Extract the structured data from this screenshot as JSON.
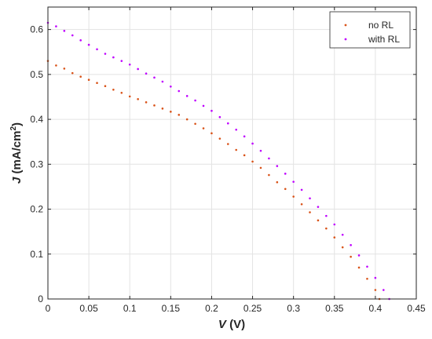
{
  "chart_data": {
    "type": "scatter",
    "title": "",
    "xlabel": {
      "var": "V",
      "unit": " (V)"
    },
    "ylabel": {
      "var": "J",
      "unit": " (mA/cm",
      "sup": "2",
      "close": ")"
    },
    "xlim": [
      0,
      0.45
    ],
    "ylim": [
      0,
      0.65
    ],
    "xticks": [
      0,
      0.05,
      0.1,
      0.15,
      0.2,
      0.25,
      0.3,
      0.35,
      0.4,
      0.45
    ],
    "xtick_labels": [
      "0",
      "0.05",
      "0.1",
      "0.15",
      "0.2",
      "0.25",
      "0.3",
      "0.35",
      "0.4",
      "0.45"
    ],
    "yticks": [
      0,
      0.1,
      0.2,
      0.3,
      0.4,
      0.5,
      0.6
    ],
    "ytick_labels": [
      "0",
      "0.1",
      "0.2",
      "0.3",
      "0.4",
      "0.5",
      "0.6"
    ],
    "grid": true,
    "legend": {
      "position": "top-right"
    },
    "series": [
      {
        "name": "no RL",
        "color": "#D95319",
        "points": [
          [
            0,
            0.53
          ],
          [
            0.01,
            0.52
          ],
          [
            0.02,
            0.513
          ],
          [
            0.03,
            0.503
          ],
          [
            0.04,
            0.495
          ],
          [
            0.05,
            0.488
          ],
          [
            0.06,
            0.481
          ],
          [
            0.07,
            0.474
          ],
          [
            0.08,
            0.466
          ],
          [
            0.09,
            0.459
          ],
          [
            0.1,
            0.451
          ],
          [
            0.11,
            0.445
          ],
          [
            0.12,
            0.438
          ],
          [
            0.13,
            0.431
          ],
          [
            0.14,
            0.424
          ],
          [
            0.15,
            0.417
          ],
          [
            0.16,
            0.41
          ],
          [
            0.17,
            0.4
          ],
          [
            0.18,
            0.39
          ],
          [
            0.19,
            0.38
          ],
          [
            0.2,
            0.369
          ],
          [
            0.21,
            0.357
          ],
          [
            0.22,
            0.345
          ],
          [
            0.23,
            0.332
          ],
          [
            0.24,
            0.32
          ],
          [
            0.25,
            0.306
          ],
          [
            0.26,
            0.292
          ],
          [
            0.27,
            0.276
          ],
          [
            0.28,
            0.26
          ],
          [
            0.29,
            0.245
          ],
          [
            0.3,
            0.228
          ],
          [
            0.31,
            0.211
          ],
          [
            0.32,
            0.193
          ],
          [
            0.33,
            0.175
          ],
          [
            0.34,
            0.157
          ],
          [
            0.35,
            0.137
          ],
          [
            0.36,
            0.115
          ],
          [
            0.37,
            0.094
          ],
          [
            0.38,
            0.07
          ],
          [
            0.39,
            0.045
          ],
          [
            0.4,
            0.02
          ],
          [
            0.405,
            0.0
          ]
        ]
      },
      {
        "name": "with RL",
        "color": "#BF00FF",
        "points": [
          [
            0,
            0.615
          ],
          [
            0.01,
            0.607
          ],
          [
            0.02,
            0.597
          ],
          [
            0.03,
            0.587
          ],
          [
            0.04,
            0.576
          ],
          [
            0.05,
            0.566
          ],
          [
            0.06,
            0.556
          ],
          [
            0.07,
            0.546
          ],
          [
            0.08,
            0.538
          ],
          [
            0.09,
            0.53
          ],
          [
            0.1,
            0.522
          ],
          [
            0.11,
            0.512
          ],
          [
            0.12,
            0.502
          ],
          [
            0.13,
            0.493
          ],
          [
            0.14,
            0.484
          ],
          [
            0.15,
            0.473
          ],
          [
            0.16,
            0.463
          ],
          [
            0.17,
            0.452
          ],
          [
            0.18,
            0.442
          ],
          [
            0.19,
            0.43
          ],
          [
            0.2,
            0.419
          ],
          [
            0.21,
            0.405
          ],
          [
            0.22,
            0.391
          ],
          [
            0.23,
            0.377
          ],
          [
            0.24,
            0.362
          ],
          [
            0.25,
            0.346
          ],
          [
            0.26,
            0.33
          ],
          [
            0.27,
            0.313
          ],
          [
            0.28,
            0.296
          ],
          [
            0.29,
            0.279
          ],
          [
            0.3,
            0.261
          ],
          [
            0.31,
            0.243
          ],
          [
            0.32,
            0.224
          ],
          [
            0.33,
            0.205
          ],
          [
            0.34,
            0.185
          ],
          [
            0.35,
            0.166
          ],
          [
            0.36,
            0.143
          ],
          [
            0.37,
            0.12
          ],
          [
            0.38,
            0.097
          ],
          [
            0.39,
            0.072
          ],
          [
            0.4,
            0.047
          ],
          [
            0.41,
            0.02
          ],
          [
            0.417,
            0.0
          ]
        ]
      }
    ]
  }
}
